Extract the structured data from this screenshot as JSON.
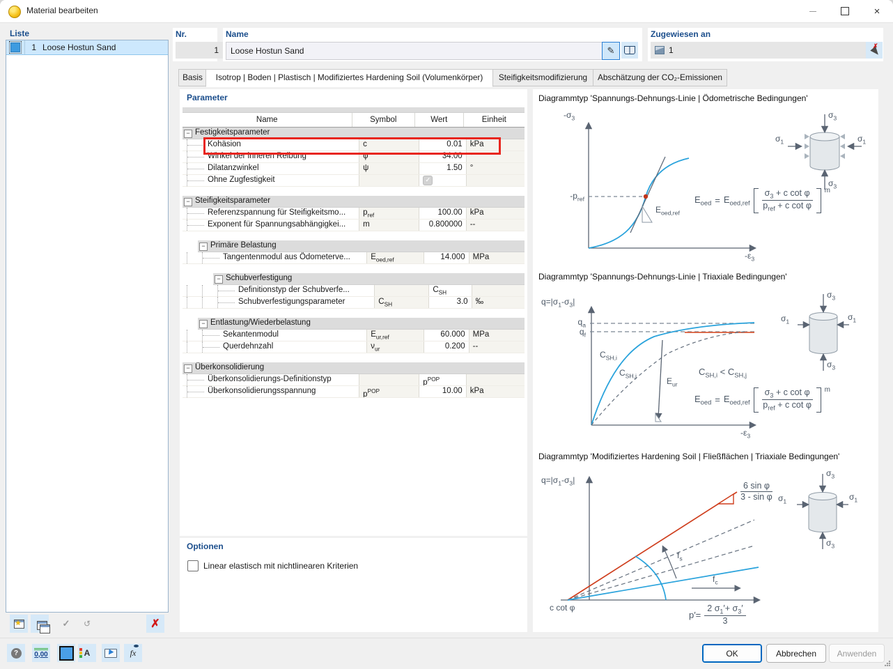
{
  "window": {
    "title": "Material bearbeiten"
  },
  "icons": {
    "collapse": "−",
    "check": "✓",
    "delete": "✗",
    "star": "★",
    "close": "×",
    "help": "?",
    "pencil": "✎",
    "undo": "↺"
  },
  "liste": {
    "label": "Liste",
    "item_number": "1",
    "item_name": "Loose Hostun Sand"
  },
  "fields": {
    "nr_label": "Nr.",
    "nr_value": "1",
    "name_label": "Name",
    "name_value": "Loose Hostun Sand",
    "assigned_label": "Zugewiesen an",
    "assigned_value": "1"
  },
  "tabs": [
    {
      "label": "Basis",
      "active": false
    },
    {
      "label": "Isotrop | Boden | Plastisch | Modifiziertes Hardening Soil (Volumenkörper)",
      "active": true
    },
    {
      "label": "Steifigkeitsmodifizierung",
      "active": false
    },
    {
      "label": "Abschätzung der CO₂-Emissionen",
      "active": false
    }
  ],
  "params": {
    "heading": "Parameter",
    "columns": [
      "Name",
      "Symbol",
      "Wert",
      "Einheit"
    ],
    "rows": [
      {
        "type": "group",
        "indent": 0,
        "name": "Festigkeitsparameter"
      },
      {
        "type": "item",
        "indent": 0,
        "name": "Kohäsion",
        "symbol": "c",
        "value": "0.01",
        "unit": "kPa",
        "highlight": true
      },
      {
        "type": "item",
        "indent": 0,
        "name": "Winkel der inneren Reibung",
        "symbol": "φ",
        "value": "34.00",
        "unit": "°"
      },
      {
        "type": "item",
        "indent": 0,
        "name": "Dilatanzwinkel",
        "symbol": "ψ",
        "value": "1.50",
        "unit": "°"
      },
      {
        "type": "item",
        "indent": 0,
        "name": "Ohne Zugfestigkeit",
        "symbol": "",
        "value": "",
        "unit": "",
        "checkbox": true
      },
      {
        "type": "spacer"
      },
      {
        "type": "group",
        "indent": 0,
        "name": "Steifigkeitsparameter"
      },
      {
        "type": "item",
        "indent": 0,
        "name": "Referenzspannung für Steifigkeitsmo...",
        "symbol": "p_{ref}",
        "value": "100.00",
        "unit": "kPa"
      },
      {
        "type": "item",
        "indent": 0,
        "name": "Exponent für Spannungsabhängigkei...",
        "symbol": "m",
        "value": "0.800000",
        "unit": "--"
      },
      {
        "type": "spacer"
      },
      {
        "type": "group",
        "indent": 1,
        "name": "Primäre Belastung"
      },
      {
        "type": "item",
        "indent": 1,
        "name": "Tangentenmodul aus Ödometerve...",
        "symbol": "E_{oed,ref}",
        "value": "14.000",
        "unit": "MPa"
      },
      {
        "type": "spacer"
      },
      {
        "type": "group",
        "indent": 2,
        "name": "Schubverfestigung"
      },
      {
        "type": "item",
        "indent": 2,
        "name": "Definitionstyp der Schubverfe...",
        "symbol": "",
        "value": "C_{SH}",
        "unit": "",
        "value_align": "left"
      },
      {
        "type": "item",
        "indent": 2,
        "name": "Schubverfestigungsparameter",
        "symbol": "C_{SH}",
        "value": "3.0",
        "unit": "‰"
      },
      {
        "type": "spacer"
      },
      {
        "type": "group",
        "indent": 1,
        "name": "Entlastung/Wiederbelastung"
      },
      {
        "type": "item",
        "indent": 1,
        "name": "Sekantenmodul",
        "symbol": "E_{ur,ref}",
        "value": "60.000",
        "unit": "MPa"
      },
      {
        "type": "item",
        "indent": 1,
        "name": "Querdehnzahl",
        "symbol": "ν_{ur}",
        "value": "0.200",
        "unit": "--"
      },
      {
        "type": "spacer"
      },
      {
        "type": "group",
        "indent": 0,
        "name": "Überkonsolidierung"
      },
      {
        "type": "item",
        "indent": 0,
        "name": "Überkonsolidierungs-Definitionstyp",
        "symbol": "",
        "value": "p^{POP}",
        "unit": "",
        "value_align": "left"
      },
      {
        "type": "item",
        "indent": 0,
        "name": "Überkonsolidierungsspannung",
        "symbol": "p^{POP}",
        "value": "10.00",
        "unit": "kPa"
      }
    ]
  },
  "options": {
    "heading": "Optionen",
    "checkbox_label": "Linear elastisch mit nichtlinearen Kriterien",
    "checked": false
  },
  "diagrams": {
    "d1": {
      "title": "Diagrammtyp 'Spannungs-Dehnungs-Linie | Ödometrische Bedingungen'",
      "y_label": "-σ_{3}",
      "x_label": "-ε_{3}",
      "pref_label": "-p_{ref}",
      "tangent_label": "E_{oed,ref}",
      "formula": {
        "lhs": "E_{oed}",
        "eq": "=",
        "rhs": "E_{oed,ref}",
        "num": "σ_{3} + c cot φ",
        "den": "p_{ref} + c cot φ",
        "exp": "m"
      },
      "cyl": {
        "s1": "σ_{1}",
        "s3": "σ_{3}"
      }
    },
    "d2": {
      "title": "Diagrammtyp 'Spannungs-Dehnungs-Linie | Triaxiale Bedingungen'",
      "y_label": "q=|σ_{1}-σ_{3}|",
      "x_label": "-ε_{3}",
      "q_a": "q_{a}",
      "q_f": "q_{f}",
      "csh_i": "C_{SH,i}",
      "csh_j": "C_{SH,j}",
      "e_ur": "E_{ur}",
      "inequality": "C_{SH,i}  <  C_{SH,j}",
      "formula": {
        "lhs": "E_{oed}",
        "eq": "=",
        "rhs": "E_{oed,ref}",
        "num": "σ_{3} + c cot φ",
        "den": "p_{ref} + c cot φ",
        "exp": "m"
      },
      "cyl": {
        "s1": "σ_{1}",
        "s3": "σ_{3}"
      }
    },
    "d3": {
      "title": "Diagrammtyp 'Modifiziertes Hardening Soil | Fließflächen | Triaxiale Bedingungen'",
      "y_label": "q=|σ_{1}-σ_{3}|",
      "slope": {
        "num": "6 sin φ",
        "den": "3 - sin φ"
      },
      "fs": "f_{s}",
      "fc": "f_{c}",
      "ccot": "c cot φ",
      "p_label": {
        "pre": "p′=",
        "num": "2 σ_{1}′+ σ_{3}′",
        "den": "3"
      },
      "cyl": {
        "s1": "σ_{1}",
        "s3": "σ_{3}"
      }
    }
  },
  "toolbar": {
    "decimal": "0,00",
    "display": "A",
    "fx": "fx"
  },
  "footer": {
    "ok": "OK",
    "cancel": "Abbrechen",
    "apply": "Anwenden"
  },
  "colors": {
    "accent_blue": "#2aa3dc",
    "diagram_red": "#cf3f1e",
    "highlight_red": "#e8261f",
    "selection": "#cde8fd"
  }
}
